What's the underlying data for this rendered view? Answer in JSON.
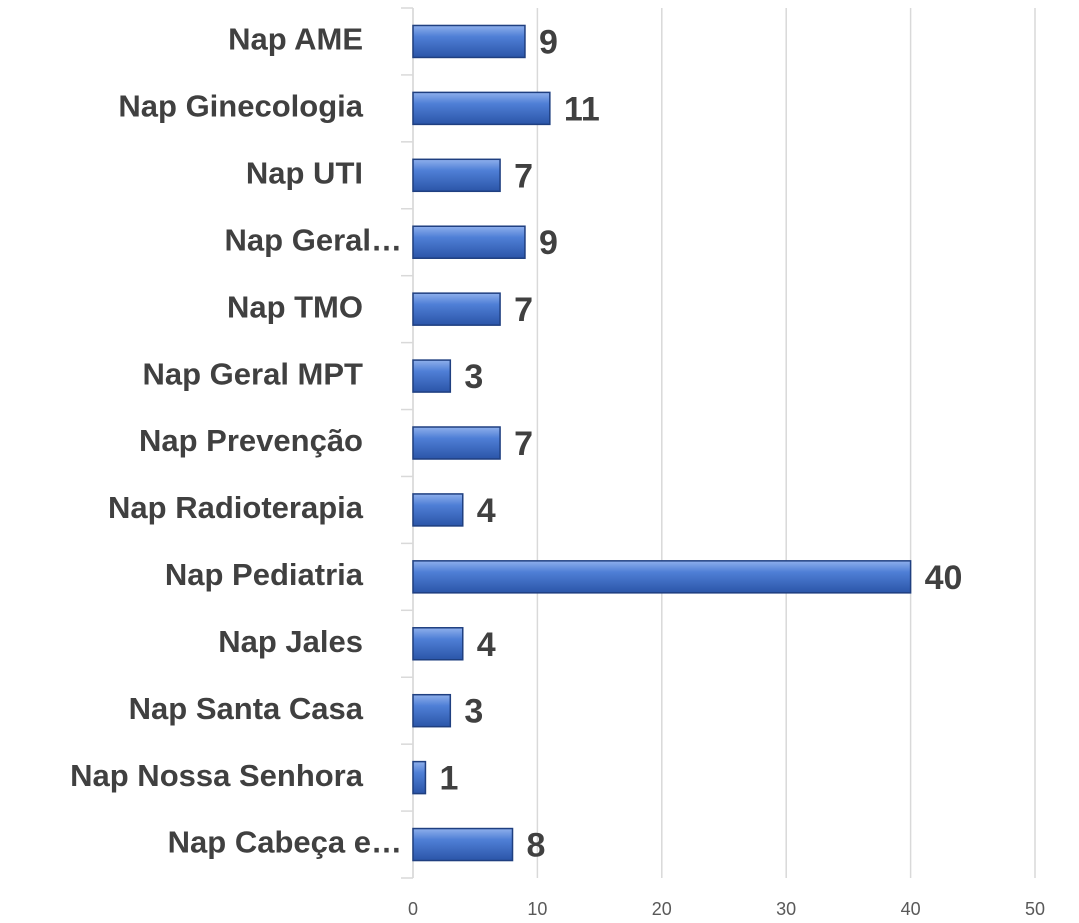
{
  "chart_data": {
    "type": "barh",
    "categories": [
      "Nap AME",
      "Nap Ginecologia",
      "Nap UTI",
      "Nap Geral…",
      "Nap TMO",
      "Nap Geral MPT",
      "Nap Prevenção",
      "Nap Radioterapia",
      "Nap Pediatria",
      "Nap Jales",
      "Nap Santa Casa",
      "Nap Nossa Senhora",
      "Nap Cabeça e…"
    ],
    "values": [
      9,
      11,
      7,
      9,
      7,
      3,
      7,
      4,
      40,
      4,
      3,
      1,
      8
    ],
    "color": "#4472c4",
    "xlim": [
      0,
      50
    ],
    "xticks": [
      0,
      10,
      20,
      30,
      40,
      50
    ],
    "grid": true
  }
}
